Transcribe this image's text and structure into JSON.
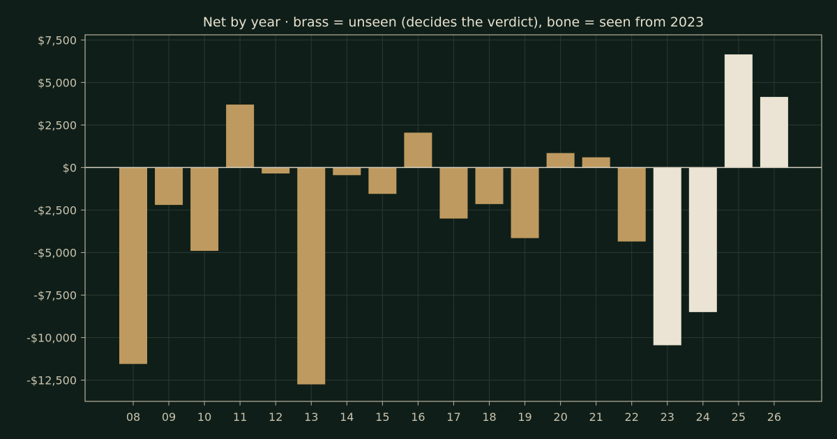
{
  "chart_data": {
    "type": "bar",
    "title": "Net by year  ·  brass = unseen (decides the verdict), bone = seen from 2023",
    "xlabel": "",
    "ylabel": "",
    "categories": [
      "08",
      "09",
      "10",
      "11",
      "12",
      "13",
      "14",
      "15",
      "16",
      "17",
      "18",
      "19",
      "20",
      "21",
      "22",
      "23",
      "24",
      "25",
      "26"
    ],
    "values": [
      -11550,
      -2200,
      -4900,
      3700,
      -350,
      -12750,
      -450,
      -1550,
      2050,
      -3000,
      -2150,
      -4150,
      850,
      600,
      -4350,
      -10450,
      -8500,
      6650,
      4150
    ],
    "groups": [
      "unseen",
      "unseen",
      "unseen",
      "unseen",
      "unseen",
      "unseen",
      "unseen",
      "unseen",
      "unseen",
      "unseen",
      "unseen",
      "unseen",
      "unseen",
      "unseen",
      "unseen",
      "seen",
      "seen",
      "seen",
      "seen"
    ],
    "group_colors": {
      "unseen": "#be9a60",
      "seen": "#ebe4d4"
    },
    "ylim": [
      -13750,
      7800
    ],
    "yticks": [
      7500,
      5000,
      2500,
      0,
      -2500,
      -5000,
      -7500,
      -10000,
      -12500
    ],
    "ytick_labels": [
      "$7,500",
      "$5,000",
      "$2,500",
      "$0",
      "-$2,500",
      "-$5,000",
      "-$7,500",
      "-$10,000",
      "-$12,500"
    ],
    "grid": true,
    "legend": "none"
  },
  "colors": {
    "background": "#0f1e18",
    "axis": "#b9b3a2",
    "grid": "#2a3a33",
    "zero_line": "#d6d0c0",
    "text": "#e6e0cf",
    "tick_text": "#c9c3b0"
  }
}
